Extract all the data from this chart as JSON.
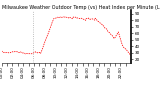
{
  "title": "Milwaukee Weather Outdoor Temp (vs) Heat Index per Minute (Last 24 Hours)",
  "line_color": "#ff0000",
  "bg_color": "#ffffff",
  "grid_color": "#cccccc",
  "y_ticks": [
    20,
    30,
    40,
    50,
    60,
    70,
    80,
    90
  ],
  "ylim": [
    15,
    95
  ],
  "n_points": 1440,
  "vline_x": 350,
  "title_fontsize": 3.5,
  "label_fontsize": 3.0
}
